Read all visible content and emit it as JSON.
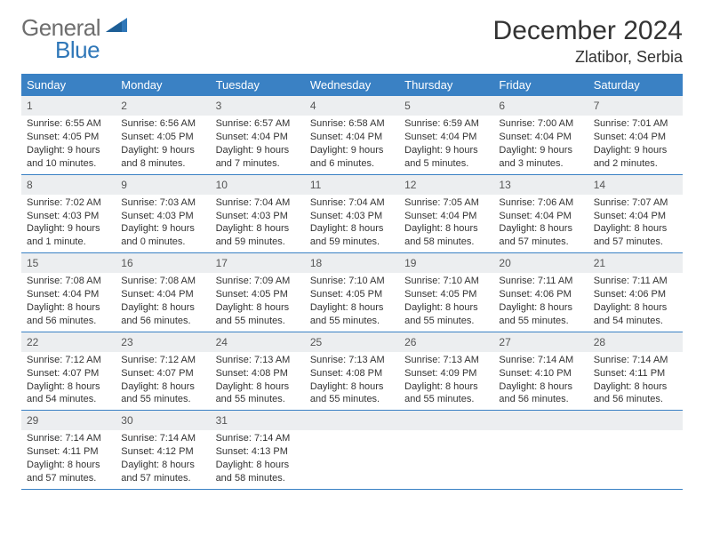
{
  "logo": {
    "word1": "General",
    "word2": "Blue"
  },
  "title": "December 2024",
  "location": "Zlatibor, Serbia",
  "colors": {
    "header_bg": "#3a81c4",
    "header_text": "#ffffff",
    "daynum_bg": "#eceef0",
    "border": "#3a81c4",
    "logo_gray": "#6e6e6e",
    "logo_blue": "#2f77b8"
  },
  "weekdays": [
    "Sunday",
    "Monday",
    "Tuesday",
    "Wednesday",
    "Thursday",
    "Friday",
    "Saturday"
  ],
  "weeks": [
    [
      {
        "num": "1",
        "sunrise": "Sunrise: 6:55 AM",
        "sunset": "Sunset: 4:05 PM",
        "daylight": "Daylight: 9 hours and 10 minutes."
      },
      {
        "num": "2",
        "sunrise": "Sunrise: 6:56 AM",
        "sunset": "Sunset: 4:05 PM",
        "daylight": "Daylight: 9 hours and 8 minutes."
      },
      {
        "num": "3",
        "sunrise": "Sunrise: 6:57 AM",
        "sunset": "Sunset: 4:04 PM",
        "daylight": "Daylight: 9 hours and 7 minutes."
      },
      {
        "num": "4",
        "sunrise": "Sunrise: 6:58 AM",
        "sunset": "Sunset: 4:04 PM",
        "daylight": "Daylight: 9 hours and 6 minutes."
      },
      {
        "num": "5",
        "sunrise": "Sunrise: 6:59 AM",
        "sunset": "Sunset: 4:04 PM",
        "daylight": "Daylight: 9 hours and 5 minutes."
      },
      {
        "num": "6",
        "sunrise": "Sunrise: 7:00 AM",
        "sunset": "Sunset: 4:04 PM",
        "daylight": "Daylight: 9 hours and 3 minutes."
      },
      {
        "num": "7",
        "sunrise": "Sunrise: 7:01 AM",
        "sunset": "Sunset: 4:04 PM",
        "daylight": "Daylight: 9 hours and 2 minutes."
      }
    ],
    [
      {
        "num": "8",
        "sunrise": "Sunrise: 7:02 AM",
        "sunset": "Sunset: 4:03 PM",
        "daylight": "Daylight: 9 hours and 1 minute."
      },
      {
        "num": "9",
        "sunrise": "Sunrise: 7:03 AM",
        "sunset": "Sunset: 4:03 PM",
        "daylight": "Daylight: 9 hours and 0 minutes."
      },
      {
        "num": "10",
        "sunrise": "Sunrise: 7:04 AM",
        "sunset": "Sunset: 4:03 PM",
        "daylight": "Daylight: 8 hours and 59 minutes."
      },
      {
        "num": "11",
        "sunrise": "Sunrise: 7:04 AM",
        "sunset": "Sunset: 4:03 PM",
        "daylight": "Daylight: 8 hours and 59 minutes."
      },
      {
        "num": "12",
        "sunrise": "Sunrise: 7:05 AM",
        "sunset": "Sunset: 4:04 PM",
        "daylight": "Daylight: 8 hours and 58 minutes."
      },
      {
        "num": "13",
        "sunrise": "Sunrise: 7:06 AM",
        "sunset": "Sunset: 4:04 PM",
        "daylight": "Daylight: 8 hours and 57 minutes."
      },
      {
        "num": "14",
        "sunrise": "Sunrise: 7:07 AM",
        "sunset": "Sunset: 4:04 PM",
        "daylight": "Daylight: 8 hours and 57 minutes."
      }
    ],
    [
      {
        "num": "15",
        "sunrise": "Sunrise: 7:08 AM",
        "sunset": "Sunset: 4:04 PM",
        "daylight": "Daylight: 8 hours and 56 minutes."
      },
      {
        "num": "16",
        "sunrise": "Sunrise: 7:08 AM",
        "sunset": "Sunset: 4:04 PM",
        "daylight": "Daylight: 8 hours and 56 minutes."
      },
      {
        "num": "17",
        "sunrise": "Sunrise: 7:09 AM",
        "sunset": "Sunset: 4:05 PM",
        "daylight": "Daylight: 8 hours and 55 minutes."
      },
      {
        "num": "18",
        "sunrise": "Sunrise: 7:10 AM",
        "sunset": "Sunset: 4:05 PM",
        "daylight": "Daylight: 8 hours and 55 minutes."
      },
      {
        "num": "19",
        "sunrise": "Sunrise: 7:10 AM",
        "sunset": "Sunset: 4:05 PM",
        "daylight": "Daylight: 8 hours and 55 minutes."
      },
      {
        "num": "20",
        "sunrise": "Sunrise: 7:11 AM",
        "sunset": "Sunset: 4:06 PM",
        "daylight": "Daylight: 8 hours and 55 minutes."
      },
      {
        "num": "21",
        "sunrise": "Sunrise: 7:11 AM",
        "sunset": "Sunset: 4:06 PM",
        "daylight": "Daylight: 8 hours and 54 minutes."
      }
    ],
    [
      {
        "num": "22",
        "sunrise": "Sunrise: 7:12 AM",
        "sunset": "Sunset: 4:07 PM",
        "daylight": "Daylight: 8 hours and 54 minutes."
      },
      {
        "num": "23",
        "sunrise": "Sunrise: 7:12 AM",
        "sunset": "Sunset: 4:07 PM",
        "daylight": "Daylight: 8 hours and 55 minutes."
      },
      {
        "num": "24",
        "sunrise": "Sunrise: 7:13 AM",
        "sunset": "Sunset: 4:08 PM",
        "daylight": "Daylight: 8 hours and 55 minutes."
      },
      {
        "num": "25",
        "sunrise": "Sunrise: 7:13 AM",
        "sunset": "Sunset: 4:08 PM",
        "daylight": "Daylight: 8 hours and 55 minutes."
      },
      {
        "num": "26",
        "sunrise": "Sunrise: 7:13 AM",
        "sunset": "Sunset: 4:09 PM",
        "daylight": "Daylight: 8 hours and 55 minutes."
      },
      {
        "num": "27",
        "sunrise": "Sunrise: 7:14 AM",
        "sunset": "Sunset: 4:10 PM",
        "daylight": "Daylight: 8 hours and 56 minutes."
      },
      {
        "num": "28",
        "sunrise": "Sunrise: 7:14 AM",
        "sunset": "Sunset: 4:11 PM",
        "daylight": "Daylight: 8 hours and 56 minutes."
      }
    ],
    [
      {
        "num": "29",
        "sunrise": "Sunrise: 7:14 AM",
        "sunset": "Sunset: 4:11 PM",
        "daylight": "Daylight: 8 hours and 57 minutes."
      },
      {
        "num": "30",
        "sunrise": "Sunrise: 7:14 AM",
        "sunset": "Sunset: 4:12 PM",
        "daylight": "Daylight: 8 hours and 57 minutes."
      },
      {
        "num": "31",
        "sunrise": "Sunrise: 7:14 AM",
        "sunset": "Sunset: 4:13 PM",
        "daylight": "Daylight: 8 hours and 58 minutes."
      },
      {
        "empty": true
      },
      {
        "empty": true
      },
      {
        "empty": true
      },
      {
        "empty": true
      }
    ]
  ]
}
